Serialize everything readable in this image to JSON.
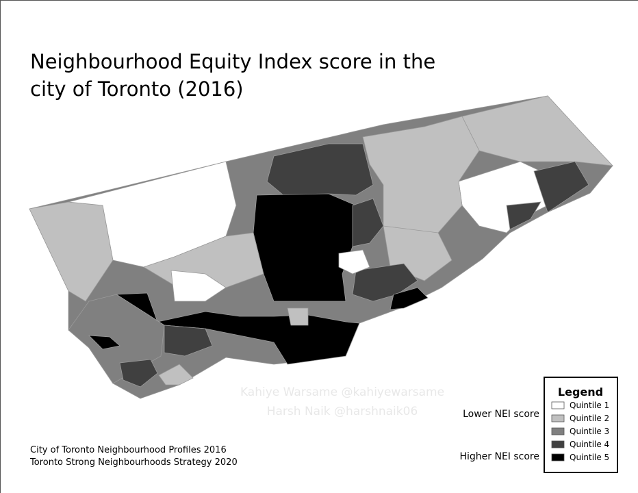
{
  "title": [
    "Neighbourhood Equity Index score in the",
    "city of Toronto (2016)"
  ],
  "watermark": [
    "Kahiye Warsame @kahiyewarsame",
    "Harsh Naik @harshnaik06"
  ],
  "legend": {
    "title": "Legend",
    "items": [
      {
        "label": "Quintile 1",
        "color": "#ffffff"
      },
      {
        "label": "Quintile 2",
        "color": "#c0c0c0"
      },
      {
        "label": "Quintile 3",
        "color": "#808080"
      },
      {
        "label": "Quintile 4",
        "color": "#404040"
      },
      {
        "label": "Quintile 5",
        "color": "#000000"
      }
    ]
  },
  "scale_notes": {
    "lower": "Lower NEI score",
    "higher": "Higher NEI score"
  },
  "sources": [
    "City of Toronto Neighbourhood Profiles 2016",
    "Toronto Strong Neighbourhoods Strategy 2020"
  ]
}
